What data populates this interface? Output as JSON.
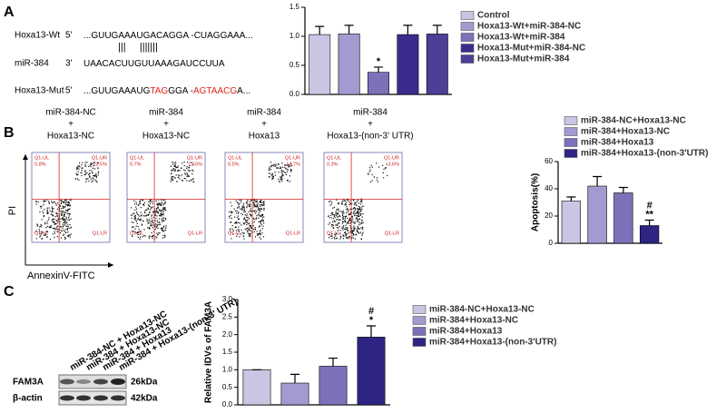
{
  "panel_labels": [
    "A",
    "B",
    "C"
  ],
  "sequences": {
    "rows": [
      {
        "name": "Hoxa13-Wt",
        "end": "5'",
        "segments": [
          {
            "text": "...GUUGAAAUGACAGGA -CUAGGAAA..."
          }
        ]
      },
      {
        "pairing": "|||     |||||||"
      },
      {
        "name": "miR-384",
        "end": "3'",
        "segments": [
          {
            "text": "UAACACUUGUUAAAGAUCCUUA"
          }
        ]
      },
      {
        "name": "Hoxa13-Mut",
        "end": "5'",
        "segments": [
          {
            "text": "...GUUGAAAUG"
          },
          {
            "text": "TAG",
            "highlight": true
          },
          {
            "text": "GGA -"
          },
          {
            "text": "AGTAACG",
            "highlight": true
          },
          {
            "text": "A..."
          }
        ]
      }
    ]
  },
  "flow_plots": [
    {
      "title_lines": [
        "miR-384-NC",
        "+",
        "Hoxa13-NC"
      ],
      "ul": "0.8%",
      "ur": "12.5%"
    },
    {
      "title_lines": [
        "miR-384",
        "+",
        "Hoxa13-NC"
      ],
      "ul": "0.7%",
      "ur": "12.5%"
    },
    {
      "title_lines": [
        "miR-384",
        "+",
        "Hoxa13"
      ],
      "ul": "0.5%",
      "ur": "14.7%"
    },
    {
      "title_lines": [
        "miR-384",
        "+",
        "Hoxa13-(non-3' UTR)"
      ],
      "ul": "0.3%",
      "ur": "3.6%"
    }
  ],
  "quadrant_names": [
    "Q1-UL",
    "Q1-UR",
    "Q1-LL",
    "Q1-LR"
  ],
  "flow_axes": {
    "y": "PI",
    "x": "AnnexinV-FITC"
  },
  "blot": {
    "lanes": [
      "miR-384-NC + Hoxa13-NC",
      "miR-384 + Hoxa13-NC",
      "miR-384 + Hoxa13",
      "miR-384 + Hoxa13-(non-3' UTR)"
    ],
    "rows": [
      {
        "name": "FAM3A",
        "size": "26kDa"
      },
      {
        "name": "β-actin",
        "size": "42kDa"
      }
    ]
  },
  "chart_data": [
    {
      "type": "bar",
      "ylabel": null,
      "categories": [
        "Control",
        "Hoxa13-Wt+miR-384-NC",
        "Hoxa13-Wt+miR-384",
        "Hoxa13-Mut+miR-384-NC",
        "Hoxa13-Mut+miR-384"
      ],
      "values": [
        1.03,
        1.04,
        0.38,
        1.03,
        1.04
      ],
      "errors": [
        0.14,
        0.15,
        0.09,
        0.16,
        0.15
      ],
      "annotations": [
        null,
        null,
        [
          "*"
        ],
        null,
        null
      ],
      "colors": [
        "#cbc4e2",
        "#a59ad0",
        "#7f70ba",
        "#3a2c8c",
        "#4b3f98"
      ],
      "ylim": [
        0,
        1.5
      ],
      "yticks": [
        {
          "value": 0,
          "label": "0.0"
        },
        {
          "value": 0.5,
          "label": "0.5"
        },
        {
          "value": 1,
          "label": "1.0"
        },
        {
          "value": 1.5,
          "label": "1.5"
        }
      ],
      "legend": "right"
    },
    {
      "type": "bar",
      "ylabel": "Apoptosis(%)",
      "categories": [
        "miR-384-NC+Hoxa13-NC",
        "miR-384+Hoxa13-NC",
        "miR-384+Hoxa13",
        "miR-384+Hoxa13-(non-3'UTR)"
      ],
      "values": [
        31,
        42,
        37,
        13
      ],
      "errors": [
        3,
        7,
        4,
        4
      ],
      "annotations": [
        null,
        null,
        null,
        [
          "#",
          "**"
        ]
      ],
      "colors": [
        "#cbc4e2",
        "#a59ad0",
        "#7f70ba",
        "#2e2582"
      ],
      "ylim": [
        0,
        60
      ],
      "yticks": [
        0,
        20,
        40,
        60
      ],
      "legend": "top"
    },
    {
      "type": "bar",
      "ylabel": "Relative IDVs of FAM3A",
      "categories": [
        "miR-384-NC+Hoxa13-NC",
        "miR-384+Hoxa13-NC",
        "miR-384+Hoxa13",
        "miR-384+Hoxa13-(non-3'UTR)"
      ],
      "values": [
        1.0,
        0.62,
        1.1,
        1.93
      ],
      "errors": [
        0,
        0.25,
        0.23,
        0.32
      ],
      "annotations": [
        null,
        null,
        null,
        [
          "#",
          "*"
        ]
      ],
      "colors": [
        "#cbc4e2",
        "#a59ad0",
        "#7f70ba",
        "#2e2582"
      ],
      "ylim": [
        0,
        3
      ],
      "yticks": [
        {
          "value": 0,
          "label": "0.0"
        },
        {
          "value": 0.5,
          "label": "0.5"
        },
        {
          "value": 1,
          "label": "1.0"
        },
        {
          "value": 1.5,
          "label": "1.5"
        },
        {
          "value": 2,
          "label": "2.0"
        },
        {
          "value": 2.5,
          "label": "2.5"
        },
        {
          "value": 3,
          "label": "3.0"
        }
      ],
      "legend": "right"
    }
  ]
}
